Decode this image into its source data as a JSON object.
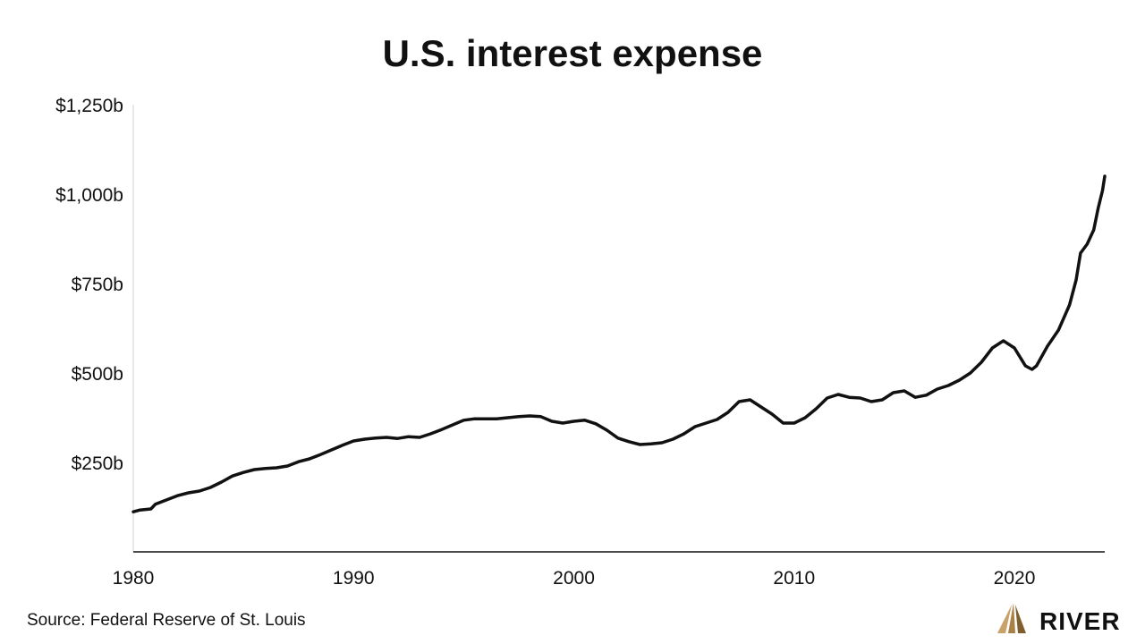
{
  "chart_data": {
    "type": "line",
    "title": "U.S. interest expense",
    "xlabel": "",
    "ylabel": "",
    "xlim": [
      1980,
      2024.1
    ],
    "ylim": [
      0,
      1250
    ],
    "x_ticks": [
      {
        "value": 1980,
        "label": "1980"
      },
      {
        "value": 1990,
        "label": "1990"
      },
      {
        "value": 2000,
        "label": "2000"
      },
      {
        "value": 2010,
        "label": "2010"
      },
      {
        "value": 2020,
        "label": "2020"
      }
    ],
    "y_ticks": [
      {
        "value": 250,
        "label": "$250b"
      },
      {
        "value": 500,
        "label": "$500b"
      },
      {
        "value": 750,
        "label": "$750b"
      },
      {
        "value": 1000,
        "label": "$1,000b"
      },
      {
        "value": 1250,
        "label": "$1,250b"
      }
    ],
    "grid": false,
    "line_color": "#111111",
    "series": [
      {
        "x": [
          1980,
          1980.3,
          1980.8,
          1981,
          1981.5,
          1982,
          1982.5,
          1983,
          1983.5,
          1984,
          1984.5,
          1985,
          1985.5,
          1986,
          1986.5,
          1987,
          1987.5,
          1988,
          1988.5,
          1989,
          1989.5,
          1990,
          1990.5,
          1991,
          1991.5,
          1992,
          1992.5,
          1993,
          1993.5,
          1994,
          1994.5,
          1995,
          1995.5,
          1996,
          1996.5,
          1997,
          1997.5,
          1998,
          1998.5,
          1999,
          1999.5,
          2000,
          2000.5,
          2001,
          2001.5,
          2002,
          2002.5,
          2003,
          2003.5,
          2004,
          2004.5,
          2005,
          2005.5,
          2006,
          2006.5,
          2007,
          2007.5,
          2008,
          2008.5,
          2009,
          2009.5,
          2010,
          2010.5,
          2011,
          2011.5,
          2012,
          2012.5,
          2013,
          2013.5,
          2014,
          2014.5,
          2015,
          2015.5,
          2016,
          2016.5,
          2017,
          2017.5,
          2018,
          2018.5,
          2019,
          2019.5,
          2020,
          2020.5,
          2020.8,
          2021,
          2021.5,
          2022,
          2022.5,
          2022.8,
          2023,
          2023.3,
          2023.6,
          2023.8,
          2024,
          2024.1
        ],
        "y": [
          112,
          117,
          120,
          133,
          145,
          157,
          165,
          170,
          180,
          195,
          212,
          222,
          230,
          233,
          235,
          240,
          252,
          260,
          272,
          285,
          298,
          310,
          315,
          318,
          320,
          317,
          322,
          320,
          330,
          342,
          355,
          368,
          372,
          372,
          372,
          375,
          378,
          380,
          378,
          365,
          360,
          365,
          368,
          358,
          340,
          318,
          308,
          300,
          302,
          305,
          315,
          330,
          350,
          360,
          370,
          390,
          420,
          425,
          405,
          385,
          360,
          360,
          375,
          400,
          430,
          440,
          432,
          430,
          420,
          425,
          445,
          450,
          432,
          438,
          455,
          465,
          480,
          500,
          530,
          570,
          590,
          570,
          520,
          510,
          520,
          575,
          620,
          690,
          760,
          835,
          860,
          900,
          960,
          1010,
          1050
        ]
      }
    ],
    "source": "Source: Federal Reserve of St. Louis",
    "brand": "RIVER",
    "brand_colors": [
      "#c9a26b",
      "#a98146",
      "#7f5e2e"
    ]
  }
}
